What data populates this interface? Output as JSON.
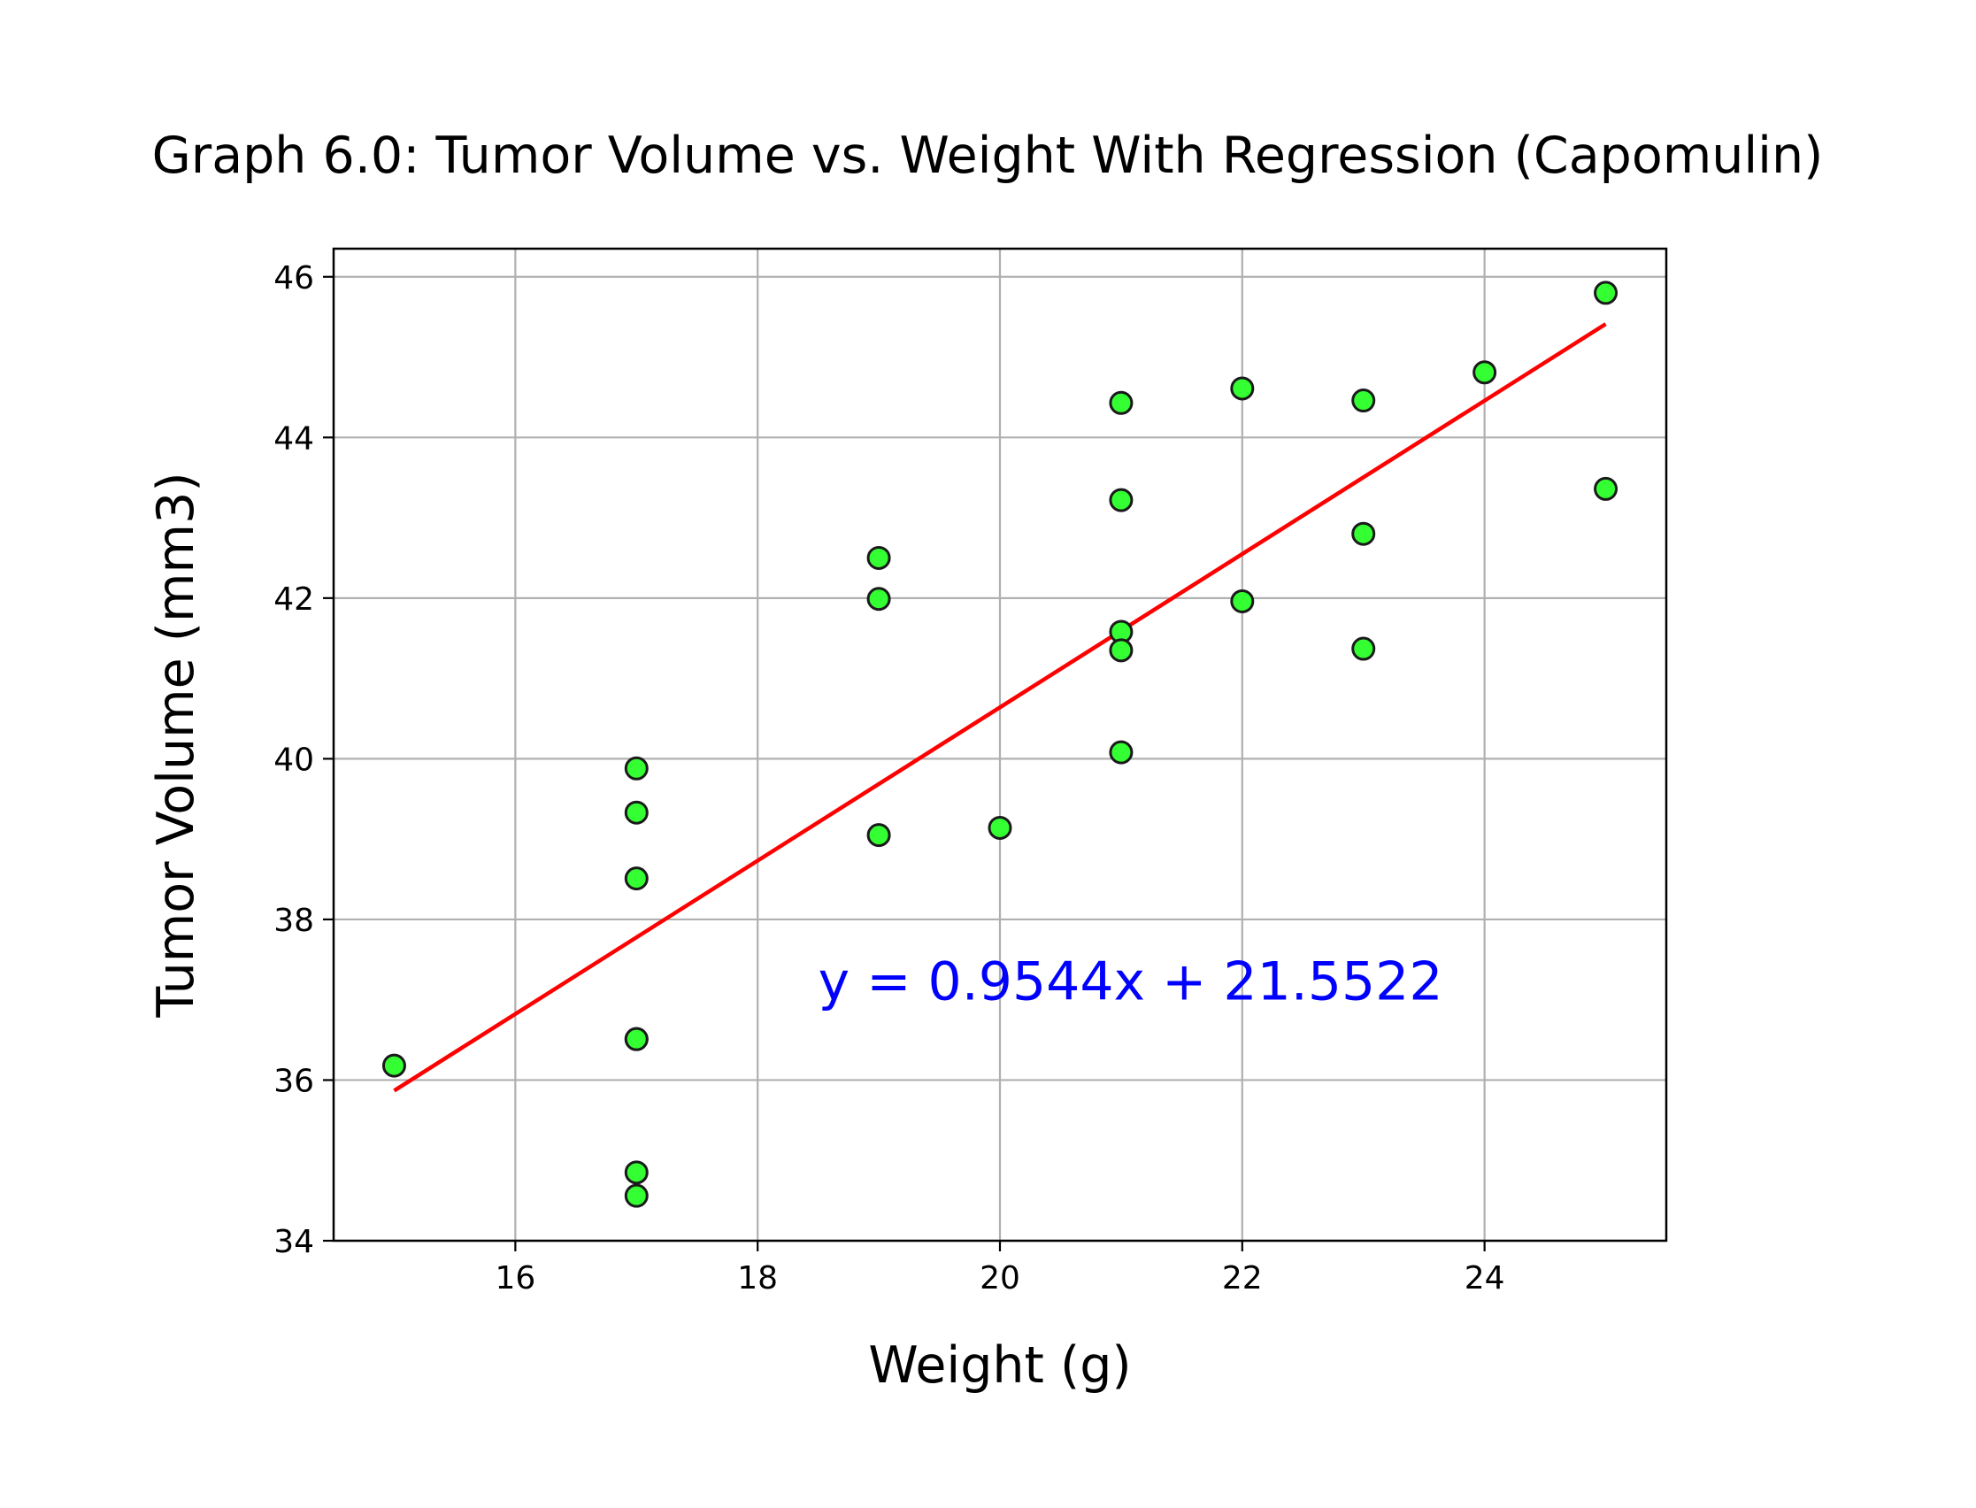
{
  "chart_data": {
    "type": "scatter",
    "title": "Graph 6.0: Tumor Volume vs. Weight With Regression (Capomulin)",
    "xlabel": "Weight (g)",
    "ylabel": "Tumor Volume (mm3)",
    "xlim": [
      14.5,
      25.5
    ],
    "ylim": [
      34,
      46.35
    ],
    "xticks": [
      16,
      18,
      20,
      22,
      24
    ],
    "yticks": [
      34,
      36,
      38,
      40,
      42,
      44,
      46
    ],
    "grid": true,
    "legend": "none",
    "points": [
      {
        "x": 15,
        "y": 36.18
      },
      {
        "x": 17,
        "y": 39.88
      },
      {
        "x": 17,
        "y": 39.33
      },
      {
        "x": 17,
        "y": 38.51
      },
      {
        "x": 17,
        "y": 36.51
      },
      {
        "x": 17,
        "y": 36.51
      },
      {
        "x": 17,
        "y": 34.85
      },
      {
        "x": 17,
        "y": 34.56
      },
      {
        "x": 19,
        "y": 42.5
      },
      {
        "x": 19,
        "y": 41.99
      },
      {
        "x": 19,
        "y": 39.05
      },
      {
        "x": 20,
        "y": 39.14
      },
      {
        "x": 21,
        "y": 44.43
      },
      {
        "x": 21,
        "y": 43.22
      },
      {
        "x": 21,
        "y": 41.58
      },
      {
        "x": 21,
        "y": 41.35
      },
      {
        "x": 21,
        "y": 40.08
      },
      {
        "x": 22,
        "y": 44.61
      },
      {
        "x": 22,
        "y": 41.96
      },
      {
        "x": 23,
        "y": 44.46
      },
      {
        "x": 23,
        "y": 42.8
      },
      {
        "x": 23,
        "y": 41.37
      },
      {
        "x": 24,
        "y": 44.81
      },
      {
        "x": 25,
        "y": 45.8
      },
      {
        "x": 25,
        "y": 43.36
      }
    ],
    "regression": {
      "slope": 0.9544,
      "intercept": 21.5522,
      "x_range": [
        15,
        25
      ]
    },
    "annotation": {
      "text": "y = 0.9544x + 21.5522",
      "x": 18.5,
      "y": 37
    },
    "colors": {
      "marker_fill": "#33ff33",
      "marker_edge": "#1a1a1a",
      "regression_line": "#ff0000",
      "annotation": "#0000ff",
      "grid": "#b0b0b0",
      "axes": "#000000"
    }
  }
}
